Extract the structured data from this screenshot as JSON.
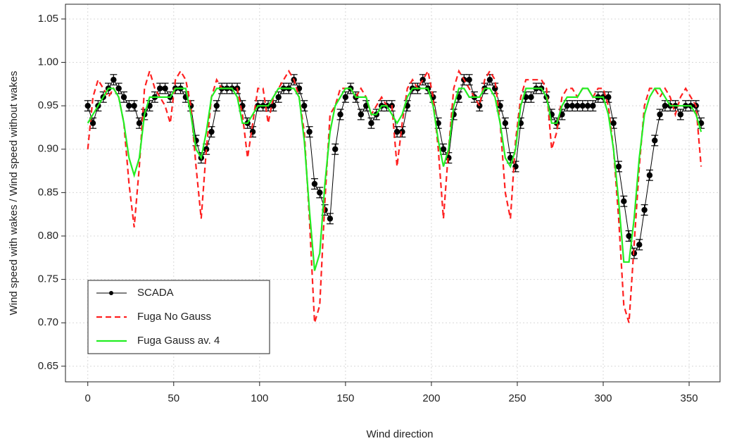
{
  "chart_data": {
    "type": "line",
    "x_label": "Wind direction",
    "y_label": "Wind speed with wakes / Wind speed without wakes",
    "x": [
      0,
      3,
      6,
      9,
      12,
      15,
      18,
      21,
      24,
      27,
      30,
      33,
      36,
      39,
      42,
      45,
      48,
      51,
      54,
      57,
      60,
      63,
      66,
      69,
      72,
      75,
      78,
      81,
      84,
      87,
      90,
      93,
      96,
      99,
      102,
      105,
      108,
      111,
      114,
      117,
      120,
      123,
      126,
      129,
      132,
      135,
      138,
      141,
      144,
      147,
      150,
      153,
      156,
      159,
      162,
      165,
      168,
      171,
      174,
      177,
      180,
      183,
      186,
      189,
      192,
      195,
      198,
      201,
      204,
      207,
      210,
      213,
      216,
      219,
      222,
      225,
      228,
      231,
      234,
      237,
      240,
      243,
      246,
      249,
      252,
      255,
      258,
      261,
      264,
      267,
      270,
      273,
      276,
      279,
      282,
      285,
      288,
      291,
      294,
      297,
      300,
      303,
      306,
      309,
      312,
      315,
      318,
      321,
      324,
      327,
      330,
      333,
      336,
      339,
      342,
      345,
      348,
      351,
      354,
      357
    ],
    "series": [
      {
        "name": "SCADA",
        "color": "#000000",
        "linestyle": "solid",
        "marker": "circle",
        "error": 0.006,
        "values": [
          0.95,
          0.93,
          0.95,
          0.96,
          0.97,
          0.98,
          0.97,
          0.96,
          0.95,
          0.95,
          0.93,
          0.94,
          0.95,
          0.96,
          0.97,
          0.97,
          0.96,
          0.97,
          0.97,
          0.96,
          0.95,
          0.91,
          0.89,
          0.9,
          0.92,
          0.95,
          0.97,
          0.97,
          0.97,
          0.97,
          0.95,
          0.93,
          0.92,
          0.95,
          0.95,
          0.95,
          0.95,
          0.96,
          0.97,
          0.97,
          0.98,
          0.97,
          0.95,
          0.92,
          0.86,
          0.85,
          0.83,
          0.82,
          0.9,
          0.94,
          0.96,
          0.97,
          0.96,
          0.94,
          0.95,
          0.93,
          0.94,
          0.95,
          0.95,
          0.95,
          0.92,
          0.92,
          0.95,
          0.97,
          0.97,
          0.98,
          0.97,
          0.96,
          0.93,
          0.9,
          0.89,
          0.94,
          0.96,
          0.98,
          0.98,
          0.96,
          0.95,
          0.97,
          0.98,
          0.97,
          0.95,
          0.93,
          0.89,
          0.88,
          0.93,
          0.96,
          0.96,
          0.97,
          0.97,
          0.96,
          0.94,
          0.93,
          0.94,
          0.95,
          0.95,
          0.95,
          0.95,
          0.95,
          0.95,
          0.96,
          0.96,
          0.96,
          0.93,
          0.88,
          0.84,
          0.8,
          0.78,
          0.79,
          0.83,
          0.87,
          0.91,
          0.94,
          0.95,
          0.95,
          0.95,
          0.94,
          0.95,
          0.95,
          0.95,
          0.93
        ]
      },
      {
        "name": "Fuga No Gauss",
        "color": "#ff2020",
        "linestyle": "dashed",
        "values": [
          0.9,
          0.96,
          0.98,
          0.97,
          0.96,
          0.97,
          0.96,
          0.93,
          0.86,
          0.81,
          0.88,
          0.97,
          0.99,
          0.97,
          0.96,
          0.95,
          0.93,
          0.98,
          0.99,
          0.98,
          0.95,
          0.88,
          0.82,
          0.9,
          0.96,
          0.98,
          0.97,
          0.97,
          0.97,
          0.97,
          0.94,
          0.89,
          0.93,
          0.97,
          0.97,
          0.93,
          0.96,
          0.97,
          0.98,
          0.99,
          0.98,
          0.96,
          0.92,
          0.82,
          0.7,
          0.72,
          0.84,
          0.94,
          0.95,
          0.97,
          0.97,
          0.97,
          0.96,
          0.97,
          0.96,
          0.94,
          0.95,
          0.96,
          0.95,
          0.95,
          0.88,
          0.93,
          0.97,
          0.98,
          0.97,
          0.98,
          0.99,
          0.96,
          0.9,
          0.82,
          0.9,
          0.97,
          0.99,
          0.98,
          0.97,
          0.96,
          0.95,
          0.98,
          0.99,
          0.98,
          0.93,
          0.85,
          0.82,
          0.91,
          0.96,
          0.98,
          0.98,
          0.98,
          0.98,
          0.97,
          0.9,
          0.92,
          0.96,
          0.97,
          0.97,
          0.96,
          0.97,
          0.97,
          0.96,
          0.97,
          0.97,
          0.95,
          0.9,
          0.82,
          0.72,
          0.7,
          0.79,
          0.88,
          0.95,
          0.97,
          0.97,
          0.96,
          0.97,
          0.96,
          0.94,
          0.96,
          0.97,
          0.96,
          0.95,
          0.88
        ]
      },
      {
        "name": "Fuga Gauss av. 4",
        "color": "#22ee22",
        "linestyle": "solid",
        "values": [
          0.93,
          0.94,
          0.95,
          0.96,
          0.97,
          0.97,
          0.96,
          0.93,
          0.89,
          0.87,
          0.89,
          0.94,
          0.96,
          0.96,
          0.96,
          0.96,
          0.96,
          0.97,
          0.97,
          0.97,
          0.94,
          0.9,
          0.89,
          0.92,
          0.96,
          0.97,
          0.97,
          0.97,
          0.97,
          0.96,
          0.93,
          0.93,
          0.94,
          0.95,
          0.95,
          0.95,
          0.96,
          0.97,
          0.97,
          0.97,
          0.97,
          0.96,
          0.91,
          0.83,
          0.76,
          0.78,
          0.86,
          0.92,
          0.95,
          0.96,
          0.97,
          0.97,
          0.96,
          0.96,
          0.96,
          0.94,
          0.94,
          0.95,
          0.95,
          0.94,
          0.93,
          0.94,
          0.96,
          0.97,
          0.97,
          0.97,
          0.97,
          0.95,
          0.91,
          0.88,
          0.9,
          0.95,
          0.97,
          0.97,
          0.96,
          0.96,
          0.96,
          0.97,
          0.97,
          0.96,
          0.93,
          0.89,
          0.88,
          0.9,
          0.95,
          0.97,
          0.97,
          0.97,
          0.97,
          0.96,
          0.93,
          0.93,
          0.95,
          0.96,
          0.96,
          0.96,
          0.97,
          0.97,
          0.96,
          0.96,
          0.96,
          0.94,
          0.9,
          0.84,
          0.77,
          0.77,
          0.82,
          0.89,
          0.94,
          0.96,
          0.97,
          0.97,
          0.96,
          0.95,
          0.95,
          0.95,
          0.95,
          0.95,
          0.94,
          0.92
        ]
      }
    ],
    "xlim": [
      -13,
      368
    ],
    "xticks": [
      0,
      50,
      100,
      150,
      200,
      250,
      300,
      350
    ],
    "ylim": [
      0.632,
      1.067
    ],
    "yticks": [
      0.65,
      {
        "value": 0.7,
        "label": "0.70"
      },
      0.75,
      {
        "value": 0.8,
        "label": "0.80"
      },
      0.85,
      {
        "value": 0.9,
        "label": "0.90"
      },
      0.95,
      {
        "value": 1,
        "label": "1.00"
      },
      1.05
    ],
    "grid": true,
    "legend": "lower left"
  }
}
